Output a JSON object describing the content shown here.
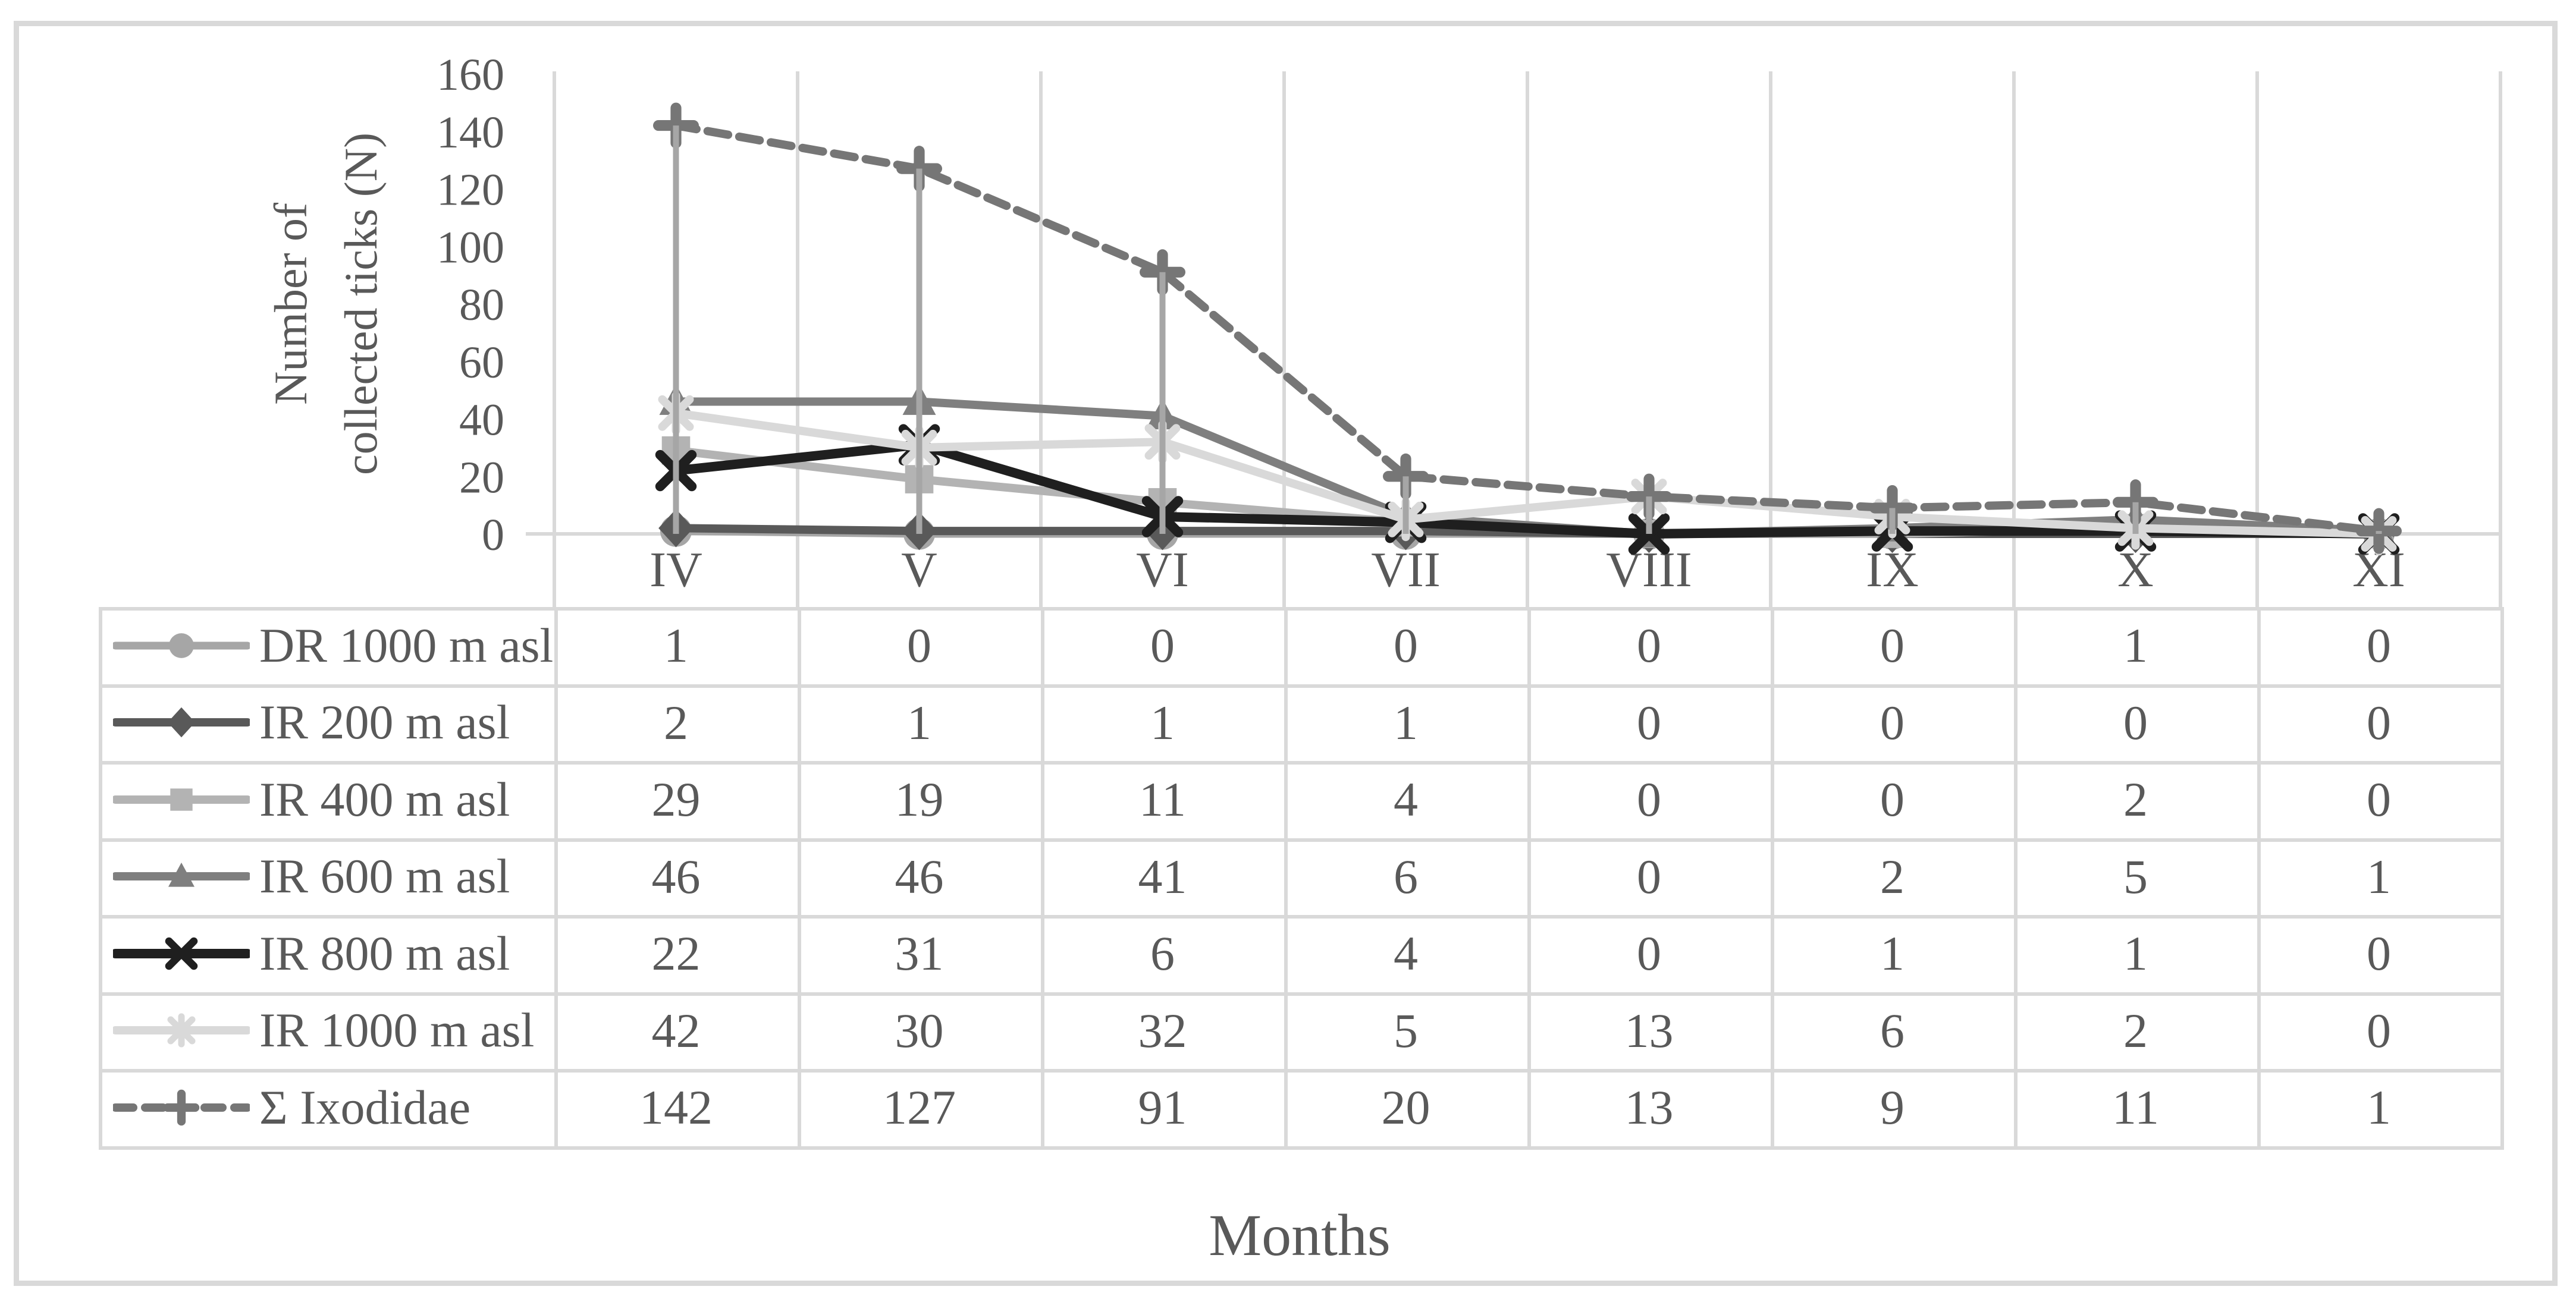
{
  "figure": {
    "background": "#ffffff",
    "border_color": "#d9d9d9",
    "grid_color": "#d9d9d9",
    "text_color": "#595959",
    "drop_line_color": "#a6a6a6"
  },
  "chart_data": {
    "type": "line",
    "title": "",
    "xlabel": "Months",
    "ylabel": "Number of collected ticks (N)",
    "ylabel_lines": [
      "Number of",
      "collected ticks (N)"
    ],
    "categories": [
      "IV",
      "V",
      "VI",
      "VII",
      "VIII",
      "IX",
      "X",
      "XI"
    ],
    "ylim": [
      0,
      160
    ],
    "yticks": [
      0,
      20,
      40,
      60,
      80,
      100,
      120,
      140,
      160
    ],
    "grid": "vertical-only",
    "legend_position": "table-left-column",
    "drop_lines": {
      "enabled": true,
      "color": "#a6a6a6"
    },
    "series": [
      {
        "name": "DR 1000 m asl",
        "values": [
          1,
          0,
          0,
          0,
          0,
          0,
          1,
          0
        ],
        "color": "#a6a6a6",
        "marker": "circle",
        "line": "solid",
        "width": 13
      },
      {
        "name": "IR 200 m asl",
        "values": [
          2,
          1,
          1,
          1,
          0,
          0,
          0,
          0
        ],
        "color": "#595959",
        "marker": "diamond",
        "line": "solid",
        "width": 14
      },
      {
        "name": "IR 400 m asl",
        "values": [
          29,
          19,
          11,
          4,
          0,
          0,
          2,
          0
        ],
        "color": "#b3b3b3",
        "marker": "square",
        "line": "solid",
        "width": 14
      },
      {
        "name": "IR 600 m asl",
        "values": [
          46,
          46,
          41,
          6,
          0,
          2,
          5,
          1
        ],
        "color": "#7f7f7f",
        "marker": "triangle",
        "line": "solid",
        "width": 14
      },
      {
        "name": "IR 800 m asl",
        "values": [
          22,
          31,
          6,
          4,
          0,
          1,
          1,
          0
        ],
        "color": "#1f1f1f",
        "marker": "x",
        "line": "solid",
        "width": 16
      },
      {
        "name": "IR 1000 m asl",
        "values": [
          42,
          30,
          32,
          5,
          13,
          6,
          2,
          0
        ],
        "color": "#d9d9d9",
        "marker": "asterisk",
        "line": "solid",
        "width": 14
      },
      {
        "name": "Σ Ixodidae",
        "values": [
          142,
          127,
          91,
          20,
          13,
          9,
          11,
          1
        ],
        "color": "#767676",
        "marker": "plus",
        "line": "dashed",
        "width": 14
      }
    ]
  }
}
